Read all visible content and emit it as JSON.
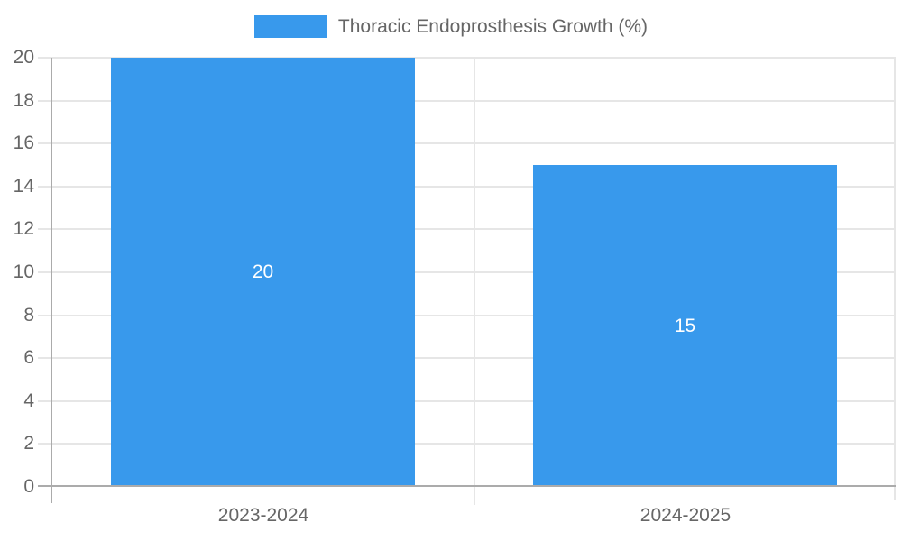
{
  "legend": {
    "position": "top-center",
    "items": [
      {
        "label": "Thoracic Endoprosthesis Growth (%)",
        "color": "#3899EC"
      }
    ]
  },
  "chart_data": {
    "type": "bar",
    "title": "",
    "xlabel": "",
    "ylabel": "",
    "categories": [
      "2023-2024",
      "2024-2025"
    ],
    "series": [
      {
        "name": "Thoracic Endoprosthesis Growth (%)",
        "color": "#3899EC",
        "values": [
          20,
          15
        ]
      }
    ],
    "data_labels": true,
    "data_label_color": "#FFFFFF",
    "ylim": [
      0,
      20
    ],
    "ytick_step": 2,
    "yticks": [
      0,
      2,
      4,
      6,
      8,
      10,
      12,
      14,
      16,
      18,
      20
    ],
    "grid": true,
    "legend_position": "top-center"
  },
  "colors": {
    "background": "#FFFFFF",
    "bar": "#3899EC",
    "gridline": "#E6E6E6",
    "axis": "#ABABAB",
    "tick_text": "#666666",
    "legend_text": "#666666",
    "bar_label": "#FFFFFF"
  }
}
